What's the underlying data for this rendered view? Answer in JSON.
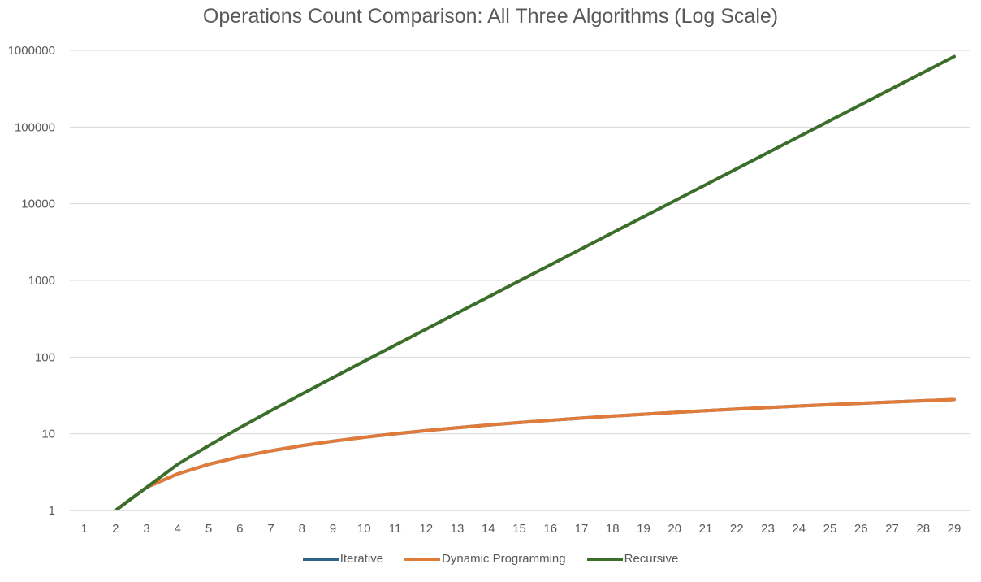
{
  "chart_data": {
    "type": "line",
    "title": "Operations Count Comparison: All Three Algorithms (Log Scale)",
    "xlabel": "",
    "ylabel": "",
    "y_scale": "log",
    "ylim": [
      1,
      1000000
    ],
    "y_ticks": [
      "1",
      "10",
      "100",
      "1000",
      "10000",
      "100000",
      "1000000"
    ],
    "grid": "horizontal",
    "legend_position": "bottom",
    "categories": [
      1,
      2,
      3,
      4,
      5,
      6,
      7,
      8,
      9,
      10,
      11,
      12,
      13,
      14,
      15,
      16,
      17,
      18,
      19,
      20,
      21,
      22,
      23,
      24,
      25,
      26,
      27,
      28,
      29
    ],
    "series": [
      {
        "name": "Iterative",
        "color": "#2E6388",
        "values": [
          0,
          1,
          2,
          3,
          4,
          5,
          6,
          7,
          8,
          9,
          10,
          11,
          12,
          13,
          14,
          15,
          16,
          17,
          18,
          19,
          20,
          21,
          22,
          23,
          24,
          25,
          26,
          27,
          28
        ]
      },
      {
        "name": "Dynamic Programming",
        "color": "#E07B39",
        "values": [
          0,
          1,
          2,
          3,
          4,
          5,
          6,
          7,
          8,
          9,
          10,
          11,
          12,
          13,
          14,
          15,
          16,
          17,
          18,
          19,
          20,
          21,
          22,
          23,
          24,
          25,
          26,
          27,
          28
        ]
      },
      {
        "name": "Recursive",
        "color": "#3B6E2A",
        "values": [
          0,
          1,
          2,
          4,
          7,
          12,
          20,
          33,
          54,
          88,
          143,
          232,
          376,
          609,
          986,
          1596,
          2583,
          4180,
          6764,
          10945,
          17710,
          28656,
          46367,
          75024,
          121392,
          196417,
          317810,
          514228,
          832039
        ]
      }
    ]
  }
}
